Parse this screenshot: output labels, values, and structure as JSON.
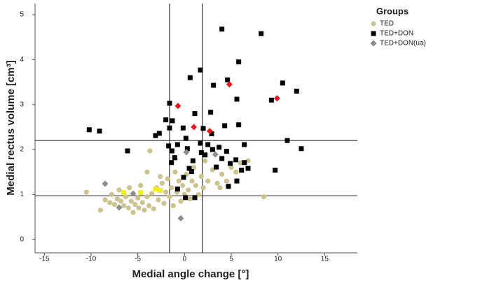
{
  "chart_data": {
    "type": "scatter",
    "x_label": "Medial angle change [°]",
    "y_label": "Medial rectus volume [cm³]",
    "legend_title": "Groups",
    "legend_position": "upper right",
    "xlim": [
      -16,
      18.5
    ],
    "ylim": [
      -0.3,
      5.25
    ],
    "xticks": [
      -15,
      -10,
      -5,
      0,
      5,
      10,
      15
    ],
    "yticks": [
      0,
      1,
      2,
      3,
      4,
      5
    ],
    "reference_lines": {
      "x": [
        -1.6,
        1.9
      ],
      "y": [
        2.2,
        0.97
      ]
    },
    "series": [
      {
        "name": "TED",
        "color": "#cdc38f",
        "marker": "circle",
        "x": [
          -10.5,
          -9.0,
          -8.5,
          -8.0,
          -7.8,
          -7.5,
          -7.2,
          -7.0,
          -6.8,
          -6.5,
          -6.3,
          -6.0,
          -5.9,
          -5.7,
          -5.5,
          -5.3,
          -5.0,
          -4.9,
          -4.7,
          -4.5,
          -4.3,
          -4.0,
          -3.8,
          -3.5,
          -3.3,
          -3.0,
          -2.8,
          -2.6,
          -2.4,
          -2.2,
          -2.0,
          -1.8,
          -1.6,
          -1.4,
          -1.2,
          -1.0,
          -0.8,
          -0.6,
          -0.4,
          -0.2,
          0.0,
          0.2,
          0.4,
          0.6,
          0.8,
          1.0,
          1.2,
          1.5,
          1.8,
          2.0,
          2.5,
          3.0,
          3.5,
          4.0,
          4.5,
          5.0,
          5.5,
          6.0,
          6.8,
          -3.7,
          -4.0,
          8.5,
          -1.0,
          2.2,
          3.8
        ],
        "values": [
          1.05,
          0.65,
          0.88,
          0.82,
          1.0,
          0.78,
          0.9,
          1.1,
          0.85,
          0.75,
          0.95,
          0.7,
          1.15,
          0.85,
          0.6,
          0.78,
          0.92,
          0.7,
          1.2,
          0.82,
          0.65,
          0.95,
          0.75,
          1.02,
          0.68,
          1.15,
          0.88,
          1.4,
          1.25,
          0.8,
          1.05,
          1.35,
          0.95,
          1.15,
          0.75,
          1.5,
          1.05,
          1.3,
          0.85,
          1.2,
          1.0,
          1.45,
          1.1,
          0.9,
          1.3,
          1.6,
          1.2,
          1.0,
          1.4,
          1.15,
          1.3,
          1.55,
          1.25,
          1.45,
          1.3,
          1.6,
          1.5,
          1.7,
          1.75,
          1.97,
          1.5,
          0.95,
          1.8,
          1.75,
          1.15
        ]
      },
      {
        "name": "TED+DON",
        "color": "#000000",
        "marker": "square",
        "x": [
          4.0,
          8.2,
          5.8,
          1.7,
          0.6,
          4.6,
          10.5,
          5.6,
          12.0,
          9.3,
          3.1,
          -1.6,
          2.8,
          1.1,
          -2.0,
          -1.3,
          -1.6,
          -0.15,
          2.0,
          2.9,
          4.3,
          5.8,
          -10.2,
          -9.1,
          -6.1,
          -3.1,
          -2.7,
          -1.7,
          -0.75,
          0.3,
          1.7,
          2.5,
          3.0,
          3.7,
          4.5,
          6.4,
          11.0,
          12.5,
          1.8,
          2.2,
          4.0,
          5.5,
          6.4,
          6.8,
          6.1,
          9.7,
          4.9,
          3.4,
          0.9,
          0.5,
          0.75,
          -0.1,
          5.6,
          4.7,
          -0.75,
          0.1,
          1.1,
          -1.4,
          -1.05,
          -1.35,
          0.15
        ],
        "values": [
          4.68,
          4.58,
          3.95,
          3.77,
          3.6,
          3.55,
          3.48,
          3.12,
          3.3,
          3.1,
          3.43,
          3.03,
          2.83,
          2.8,
          2.66,
          2.64,
          2.48,
          2.48,
          2.47,
          2.35,
          2.53,
          2.55,
          2.44,
          2.41,
          1.97,
          2.31,
          2.36,
          2.08,
          2.11,
          2.02,
          2.14,
          2.11,
          2.0,
          2.05,
          1.96,
          2.11,
          2.2,
          2.02,
          1.93,
          1.88,
          1.8,
          1.77,
          1.71,
          1.58,
          1.54,
          1.54,
          1.69,
          1.61,
          1.75,
          1.58,
          1.51,
          1.38,
          1.3,
          1.18,
          1.12,
          0.93,
          0.93,
          1.71,
          1.82,
          1.97,
          2.25
        ]
      },
      {
        "name": "TED+DON(ua)",
        "color": "#8c8c8c",
        "marker": "diamond",
        "x": [
          -8.5,
          -7.0,
          -5.5,
          -0.4,
          3.3,
          0.2
        ],
        "values": [
          1.24,
          0.71,
          1.02,
          0.47,
          1.89,
          1.94
        ]
      },
      {
        "color": "#e8181c",
        "marker": "diamond",
        "x": [
          -0.7,
          1.0,
          4.8,
          9.9,
          2.7
        ],
        "values": [
          2.97,
          2.5,
          3.45,
          3.14,
          2.41
        ]
      },
      {
        "color": "#f2ee1a",
        "marker": "square",
        "x": [
          -6.5,
          -4.7,
          -3.1,
          -2.6
        ],
        "values": [
          1.04,
          1.04,
          1.12,
          1.09
        ]
      }
    ]
  }
}
